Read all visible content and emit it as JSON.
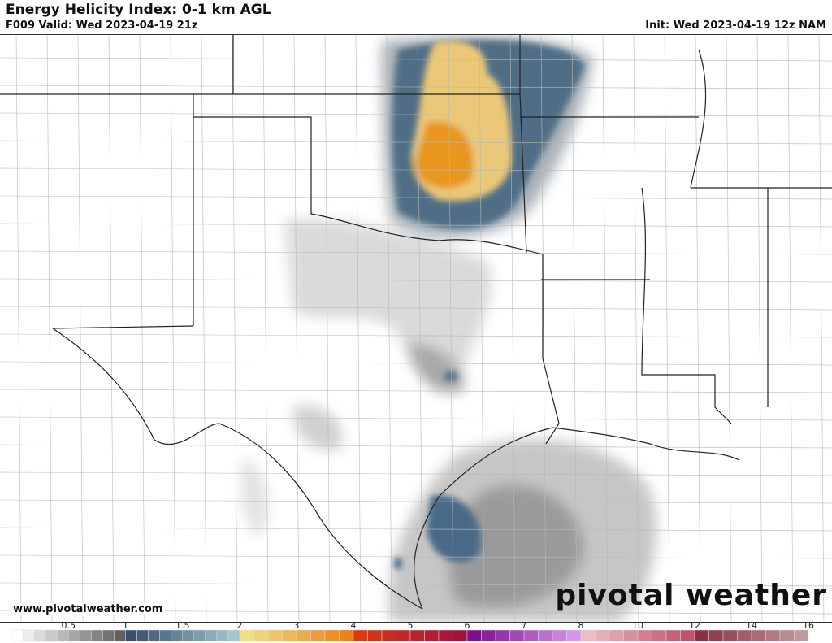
{
  "header": {
    "title": "Energy Helicity Index: 0-1 km AGL",
    "valid": "F009 Valid: Wed 2023-04-19 21z",
    "init": "Init: Wed 2023-04-19 12z NAM"
  },
  "footer": {
    "url": "www.pivotalweather.com",
    "brand": "pivotal weather"
  },
  "colorbar": {
    "ticks": [
      "0.5",
      "1",
      "1.5",
      "2",
      "3",
      "4",
      "5",
      "6",
      "7",
      "8",
      "10",
      "12",
      "14",
      "16"
    ],
    "stops": [
      {
        "v": 0,
        "c": "#ffffff"
      },
      {
        "v": 0.9,
        "c": "#606060"
      },
      {
        "v": 1,
        "c": "#34506a"
      },
      {
        "v": 1.95,
        "c": "#a8ccd4"
      },
      {
        "v": 2,
        "c": "#f0e08a"
      },
      {
        "v": 3.9,
        "c": "#e87a10"
      },
      {
        "v": 4,
        "c": "#d83a18"
      },
      {
        "v": 5.9,
        "c": "#9a1040"
      },
      {
        "v": 6,
        "c": "#7a1090"
      },
      {
        "v": 7.9,
        "c": "#e0a0f0"
      },
      {
        "v": 8,
        "c": "#ecbcc4"
      },
      {
        "v": 11.9,
        "c": "#b84860"
      },
      {
        "v": 12,
        "c": "#8a3040"
      },
      {
        "v": 16,
        "c": "#c8a8ac"
      }
    ]
  },
  "colors": {
    "border": "#222222",
    "county": "#b0b0b0"
  }
}
